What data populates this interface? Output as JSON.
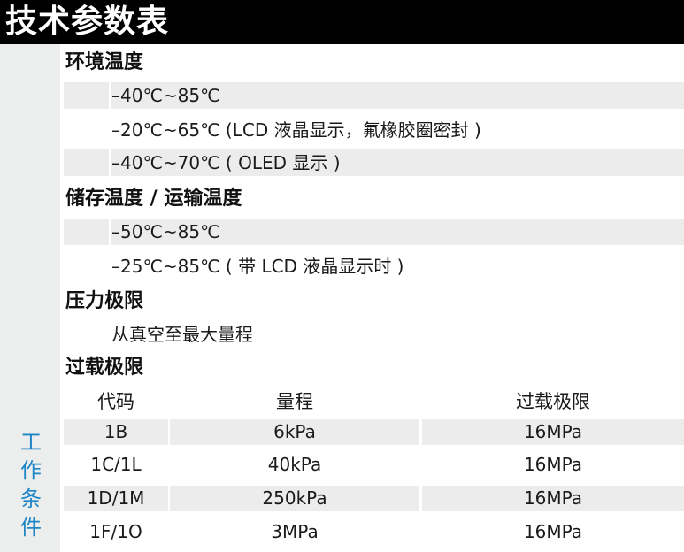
{
  "title": "技术参数表",
  "sidebar_label": [
    "工",
    "作",
    "条",
    "件"
  ],
  "sections": {
    "env_temp": {
      "heading": "环境温度",
      "items": [
        "–40℃~85℃",
        "–20℃~65℃ (LCD 液晶显示，氟橡胶圈密封 )",
        "–40℃~70℃ ( OLED 显示 )"
      ]
    },
    "storage_temp": {
      "heading": "储存温度 / 运输温度",
      "items": [
        "–50℃~85℃",
        "–25℃~85℃ ( 带 LCD 液晶显示时 )"
      ]
    },
    "pressure_limit": {
      "heading": "压力极限",
      "items": [
        "从真空至最大量程"
      ]
    },
    "overload": {
      "heading": "过载极限",
      "columns": [
        "代码",
        "量程",
        "过载极限"
      ],
      "rows": [
        [
          "1B",
          "6kPa",
          "16MPa"
        ],
        [
          "1C/1L",
          "40kPa",
          "16MPa"
        ],
        [
          "1D/1M",
          "250kPa",
          "16MPa"
        ],
        [
          "1F/1O",
          "3MPa",
          "16MPa"
        ]
      ]
    }
  }
}
